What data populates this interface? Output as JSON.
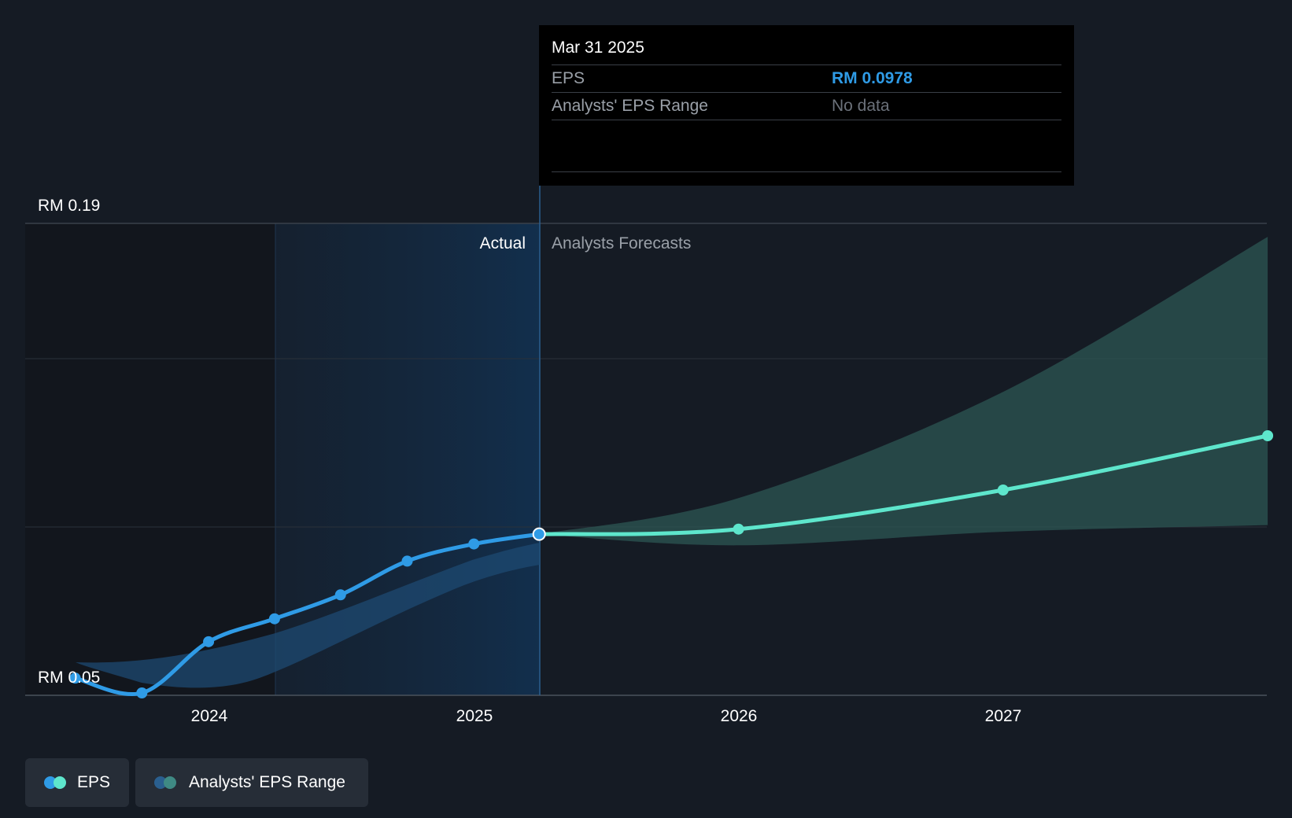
{
  "chart_data": {
    "type": "line",
    "y_axis": {
      "labels": [
        "RM 0.19",
        "RM 0.05"
      ],
      "min": 0.05,
      "max": 0.19
    },
    "x_axis": {
      "tick_labels": [
        "2024",
        "2025",
        "2026",
        "2027"
      ]
    },
    "region_labels": {
      "actual": "Actual",
      "forecast": "Analysts Forecasts"
    },
    "series": [
      {
        "name": "EPS",
        "kind": "actual",
        "color": "#2f9be6",
        "points": [
          {
            "x": "2023-06-30",
            "y": 0.0551
          },
          {
            "x": "2023-09-30",
            "y": 0.0507
          },
          {
            "x": "2023-12-31",
            "y": 0.0659
          },
          {
            "x": "2024-03-31",
            "y": 0.0727
          },
          {
            "x": "2024-06-30",
            "y": 0.0798
          },
          {
            "x": "2024-09-30",
            "y": 0.0898
          },
          {
            "x": "2024-12-31",
            "y": 0.0949
          },
          {
            "x": "2025-03-31",
            "y": 0.0978
          }
        ]
      },
      {
        "name": "EPS",
        "kind": "forecast",
        "color": "#5ee6cc",
        "points": [
          {
            "x": "2025-03-31",
            "y": 0.0978
          },
          {
            "x": "2025-12-31",
            "y": 0.0993
          },
          {
            "x": "2026-12-31",
            "y": 0.1109
          },
          {
            "x": "2027-12-31",
            "y": 0.127
          }
        ]
      },
      {
        "name": "Analysts' EPS Range",
        "kind": "range",
        "color": "#2e5a57",
        "points": [
          {
            "x": "2025-03-31",
            "low": 0.0978,
            "high": 0.0978
          },
          {
            "x": "2025-12-31",
            "low": 0.0945,
            "high": 0.1085
          },
          {
            "x": "2026-12-31",
            "low": 0.0985,
            "high": 0.14
          },
          {
            "x": "2027-12-31",
            "low": 0.1005,
            "high": 0.186
          }
        ]
      }
    ],
    "grid": true,
    "legend_position": "bottom-left"
  },
  "tooltip": {
    "date": "Mar 31 2025",
    "rows": [
      {
        "label": "EPS",
        "value": "RM 0.0978"
      },
      {
        "label": "Analysts' EPS Range",
        "value": "No data"
      }
    ]
  },
  "legend": {
    "items": [
      {
        "label": "EPS",
        "colors": [
          "#2f9be6",
          "#5ee6cc"
        ]
      },
      {
        "label": "Analysts' EPS Range",
        "colors": [
          "#2a5f8f",
          "#3f8a84"
        ]
      }
    ]
  }
}
